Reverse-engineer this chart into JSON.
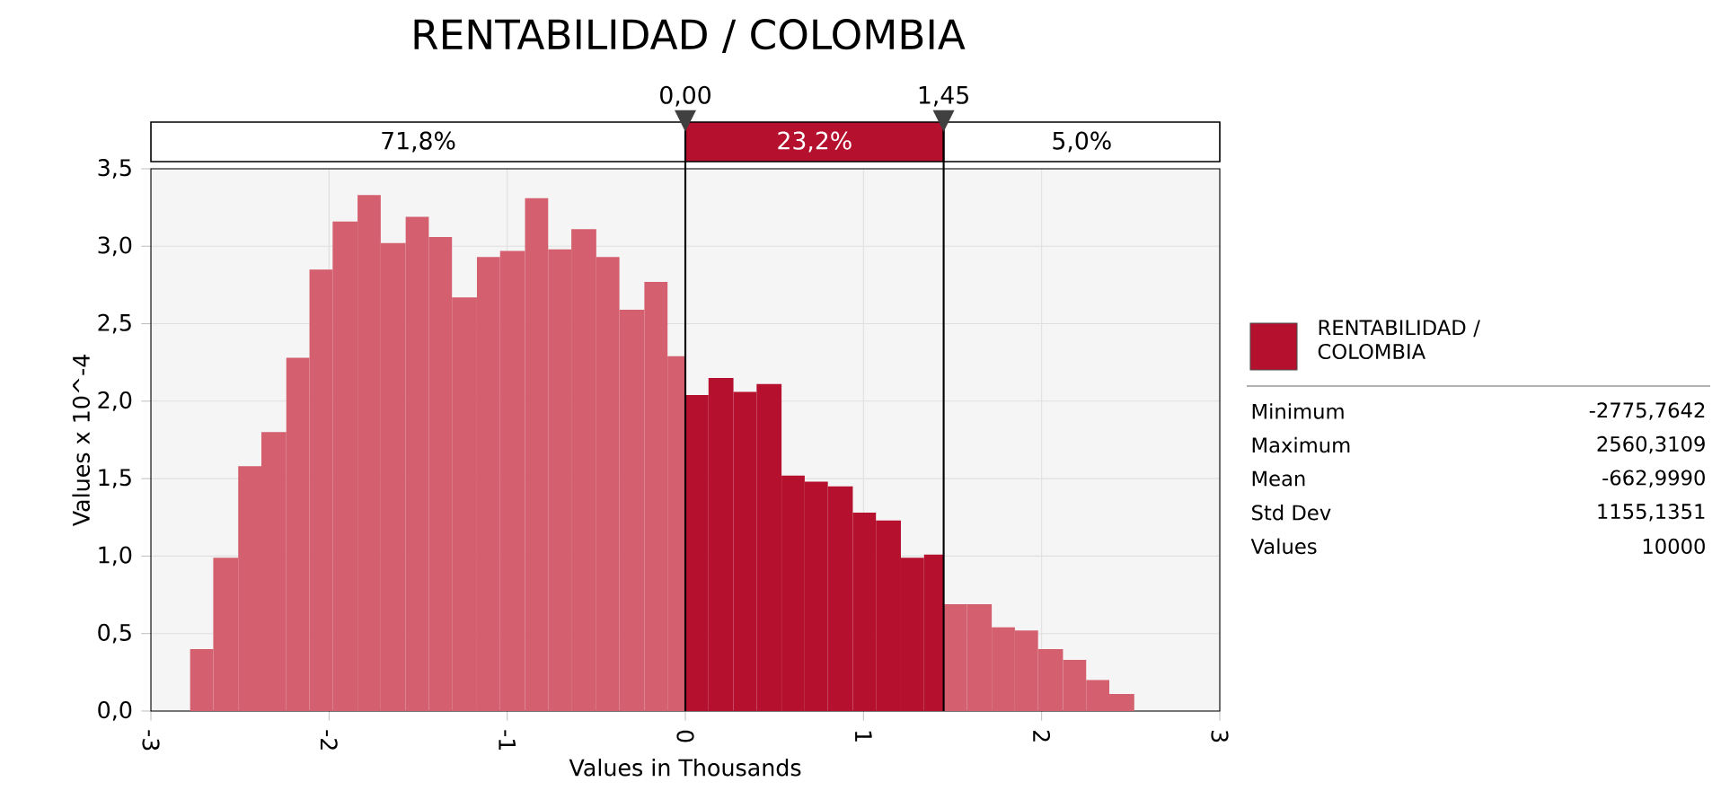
{
  "chart_data": {
    "type": "histogram",
    "title": "RENTABILIDAD / COLOMBIA",
    "xlabel": "Values in Thousands",
    "ylabel": "Values x 10^-4",
    "bins": [
      -2.78,
      -2.65,
      -2.51,
      -2.38,
      -2.24,
      -2.11,
      -1.98,
      -1.84,
      -1.71,
      -1.57,
      -1.44,
      -1.31,
      -1.17,
      -1.04,
      -0.9,
      -0.77,
      -0.64,
      -0.5,
      -0.37,
      -0.23,
      -0.1,
      0.0,
      0.13,
      0.27,
      0.4,
      0.54,
      0.67,
      0.8,
      0.94,
      1.07,
      1.21,
      1.34,
      1.45,
      1.58,
      1.72,
      1.85,
      1.98,
      2.12,
      2.25,
      2.38,
      2.52
    ],
    "series": [
      {
        "name": "RENTABILIDAD / COLOMBIA",
        "color": "#b5112f",
        "colors": [
          "#d4606f",
          "#d4606f",
          "#d4606f",
          "#d4606f",
          "#d4606f",
          "#d4606f",
          "#d4606f",
          "#d4606f",
          "#d4606f",
          "#d4606f",
          "#d4606f",
          "#d4606f",
          "#d4606f",
          "#d4606f",
          "#d4606f",
          "#d4606f",
          "#d4606f",
          "#d4606f",
          "#d4606f",
          "#d4606f",
          "#d4606f",
          "#b5112f",
          "#b5112f",
          "#b5112f",
          "#b5112f",
          "#b5112f",
          "#b5112f",
          "#b5112f",
          "#b5112f",
          "#b5112f",
          "#b5112f",
          "#b5112f",
          "#d4606f",
          "#d4606f",
          "#d4606f",
          "#d4606f",
          "#d4606f",
          "#d4606f",
          "#d4606f",
          "#d4606f"
        ],
        "values": [
          0.4,
          0.99,
          1.58,
          1.8,
          2.28,
          2.85,
          3.16,
          3.33,
          3.02,
          3.19,
          3.06,
          2.67,
          2.93,
          2.97,
          3.31,
          2.98,
          3.11,
          2.93,
          2.59,
          2.77,
          2.29,
          2.04,
          2.15,
          2.06,
          2.11,
          1.52,
          1.48,
          1.45,
          1.28,
          1.23,
          0.99,
          1.01,
          0.69,
          0.69,
          0.54,
          0.52,
          0.4,
          0.33,
          0.2,
          0.11
        ]
      }
    ],
    "xlim": [
      -3,
      3
    ],
    "ylim": [
      0,
      3.5
    ],
    "xticks": [
      -3,
      -2,
      -1,
      0,
      1,
      2,
      3
    ],
    "yticks": [
      {
        "value": 0,
        "label": "0,0"
      },
      {
        "value": 0.5,
        "label": "0,5"
      },
      {
        "value": 1,
        "label": "1,0"
      },
      {
        "value": 1.5,
        "label": "1,5"
      },
      {
        "value": 2,
        "label": "2,0"
      },
      {
        "value": 2.5,
        "label": "2,5"
      },
      {
        "value": 3,
        "label": "3,0"
      },
      {
        "value": 3.5,
        "label": "3,5"
      }
    ],
    "grid": true,
    "legend": "right",
    "ref_lines": [
      {
        "axis": "x",
        "value": 0,
        "label": "0,00"
      },
      {
        "axis": "x",
        "value": 1.45,
        "label": "1,45"
      }
    ],
    "annotations": [
      "71,8%",
      "23,2%",
      "5,0%",
      "Minimum",
      "-2775,7642",
      "Maximum",
      "2560,3109",
      "Mean",
      "-662,9990",
      "Std Dev",
      "1155,1351",
      "Values",
      "10000"
    ]
  }
}
